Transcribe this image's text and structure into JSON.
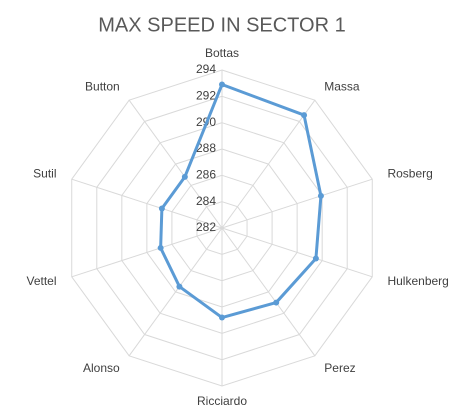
{
  "chart_data": {
    "type": "radar",
    "title": "MAX SPEED IN SECTOR 1",
    "categories": [
      "Bottas",
      "Massa",
      "Rosberg",
      "Hulkenberg",
      "Perez",
      "Ricciardo",
      "Alonso",
      "Vettel",
      "Sutil",
      "Button"
    ],
    "series": [
      {
        "color": "#5b9bd5",
        "values": [
          292.9,
          292.6,
          289.9,
          289.5,
          289,
          288.8,
          287.5,
          286.9,
          286.8,
          286.8
        ]
      }
    ],
    "ylim": [
      282,
      294
    ],
    "yticks": [
      282,
      284,
      286,
      288,
      290,
      292,
      294
    ],
    "grid": true
  }
}
